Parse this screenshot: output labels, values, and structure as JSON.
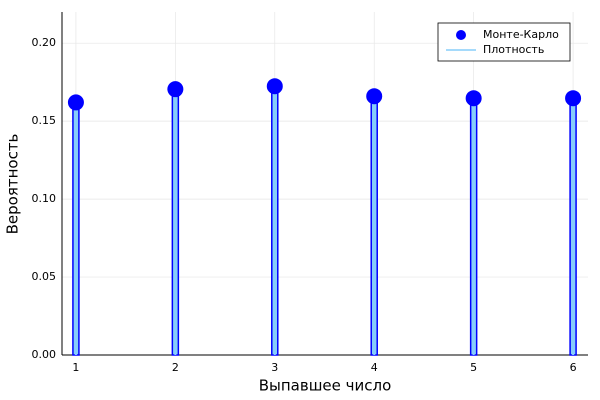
{
  "chart_data": {
    "type": "stem",
    "x_label": "Выпавшее число",
    "y_label": "Вероятность",
    "x": [
      1,
      2,
      3,
      4,
      5,
      6
    ],
    "series": [
      {
        "name": "Монте-Карло",
        "color": "#0000ff",
        "values": [
          0.162,
          0.1705,
          0.1724,
          0.166,
          0.1647,
          0.1647
        ]
      },
      {
        "name": "Плотность",
        "color": "#87cefa",
        "values": [
          0.1667,
          0.1667,
          0.1667,
          0.1667,
          0.1667,
          0.1667
        ]
      }
    ],
    "xlim": [
      0.86,
      6.15
    ],
    "ylim": [
      0,
      0.22
    ],
    "xticks": [
      1,
      2,
      3,
      4,
      5,
      6
    ],
    "yticks": [
      {
        "value": 0,
        "label": "0.00"
      },
      {
        "value": 0.05,
        "label": "0.05"
      },
      {
        "value": 0.1,
        "label": "0.10"
      },
      {
        "value": 0.15,
        "label": "0.15"
      },
      {
        "value": 0.2,
        "label": "0.20"
      }
    ],
    "grid": true,
    "legend": "top-right"
  }
}
